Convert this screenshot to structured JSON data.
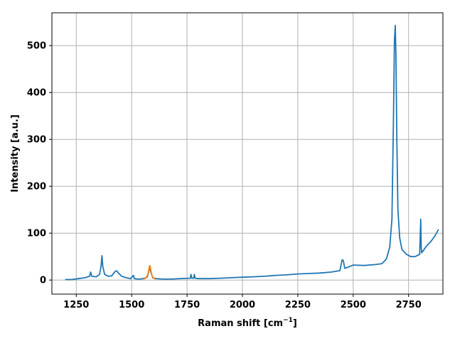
{
  "chart_data": {
    "type": "line",
    "title": "",
    "xlabel": "Raman shift [cm",
    "xlabel_sup": "−1",
    "xlabel_close": "]",
    "ylabel": "Intensity [a.u.]",
    "xlim": [
      1140,
      2905
    ],
    "ylim": [
      -30,
      570
    ],
    "xticks": [
      1250,
      1500,
      1750,
      2000,
      2250,
      2500,
      2750
    ],
    "yticks": [
      0,
      100,
      200,
      300,
      400,
      500
    ],
    "xtick_labels": [
      "1250",
      "1500",
      "1750",
      "2000",
      "2250",
      "2500",
      "2750"
    ],
    "ytick_labels": [
      "0",
      "100",
      "200",
      "300",
      "400",
      "500"
    ],
    "grid": true,
    "series": [
      {
        "color": "#1f77b4",
        "x": [
          1200,
          1230,
          1260,
          1290,
          1310,
          1315,
          1320,
          1340,
          1355,
          1362,
          1366,
          1370,
          1378,
          1395,
          1410,
          1425,
          1432,
          1440,
          1455,
          1475,
          1495,
          1505,
          1508,
          1512,
          1530,
          1555,
          1570,
          1578,
          1582,
          1586,
          1595,
          1610,
          1640,
          1680,
          1720,
          1765,
          1768,
          1772,
          1780,
          1783,
          1786,
          1800,
          1850,
          1900,
          1950,
          2000,
          2050,
          2100,
          2150,
          2200,
          2250,
          2300,
          2350,
          2400,
          2440,
          2450,
          2455,
          2462,
          2480,
          2500,
          2550,
          2600,
          2630,
          2650,
          2665,
          2675,
          2682,
          2686,
          2690,
          2693,
          2697,
          2702,
          2710,
          2720,
          2740,
          2760,
          2780,
          2800,
          2805,
          2807,
          2809,
          2815,
          2830,
          2850,
          2870,
          2885
        ],
        "y": [
          1,
          1,
          3,
          5,
          8,
          17,
          8,
          7,
          12,
          30,
          52,
          28,
          12,
          8,
          9,
          18,
          20,
          15,
          8,
          5,
          3,
          8,
          10,
          3,
          2,
          3,
          6,
          20,
          30,
          18,
          5,
          3,
          2,
          2,
          3,
          4,
          12,
          4,
          4,
          12,
          4,
          3,
          3,
          4,
          5,
          6,
          7,
          8,
          10,
          11,
          13,
          14,
          15,
          17,
          20,
          43,
          42,
          25,
          28,
          32,
          31,
          33,
          35,
          45,
          70,
          130,
          350,
          510,
          543,
          480,
          300,
          150,
          90,
          65,
          55,
          50,
          50,
          55,
          130,
          70,
          58,
          62,
          72,
          82,
          95,
          108
        ]
      },
      {
        "color": "#ff7f0e",
        "x": [
          1555,
          1562,
          1568,
          1572,
          1575,
          1578,
          1580,
          1582,
          1584,
          1587,
          1590,
          1594,
          1600,
          1608
        ],
        "y": [
          2,
          4,
          7,
          11,
          16,
          23,
          28,
          31,
          28,
          20,
          12,
          7,
          4,
          2
        ]
      }
    ]
  }
}
